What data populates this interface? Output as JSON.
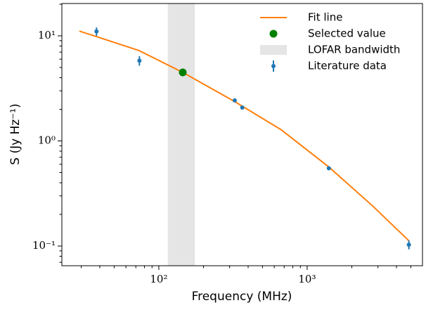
{
  "chart_data": {
    "type": "scatter",
    "x_label": "Frequency (MHz)",
    "y_label": "S (Jy Hz⁻¹)",
    "log_x": true,
    "log_y": true,
    "xlim": [
      22.2,
      5990
    ],
    "ylim": [
      0.065,
      20.3
    ],
    "xticks": [
      {
        "value": 100,
        "label": "10²"
      },
      {
        "value": 1000,
        "label": "10³"
      }
    ],
    "yticks": [
      {
        "value": 0.1,
        "label": "10⁻¹"
      },
      {
        "value": 1,
        "label": "10⁰"
      },
      {
        "value": 10,
        "label": "10¹"
      }
    ],
    "xminor": [
      30,
      40,
      50,
      60,
      70,
      80,
      90,
      200,
      300,
      400,
      500,
      600,
      700,
      800,
      900,
      2000,
      3000,
      4000,
      5000
    ],
    "yminor": [
      0.07,
      0.08,
      0.09,
      0.2,
      0.3,
      0.4,
      0.5,
      0.6,
      0.7,
      0.8,
      0.9,
      2,
      3,
      4,
      5,
      6,
      7,
      8,
      9,
      20
    ],
    "legend": "upper right",
    "band": {
      "name": "LOFAR bandwidth",
      "color": "#e5e5e5",
      "x": [
        115,
        175
      ]
    },
    "series": [
      {
        "name": "Fit line",
        "type": "line",
        "color": "#ff7f0e",
        "x": [
          29.1,
          37.8,
          73.6,
          145,
          321,
          667,
          1400,
          2770,
          4860
        ],
        "values": [
          11.1,
          9.85,
          7.24,
          4.49,
          2.39,
          1.28,
          0.565,
          0.24,
          0.112
        ]
      },
      {
        "name": "Selected value",
        "type": "point",
        "color": "#008000",
        "x": [
          145
        ],
        "values": [
          4.49
        ]
      },
      {
        "name": "Literature data",
        "type": "errorbar",
        "color": "#1f77b4",
        "x": [
          38,
          74,
          325,
          365,
          1400,
          4850
        ],
        "values": [
          11.0,
          5.8,
          2.43,
          2.08,
          0.55,
          0.103
        ],
        "errors": [
          1.0,
          0.6,
          0.05,
          0.05,
          0.02,
          0.01
        ]
      }
    ]
  }
}
